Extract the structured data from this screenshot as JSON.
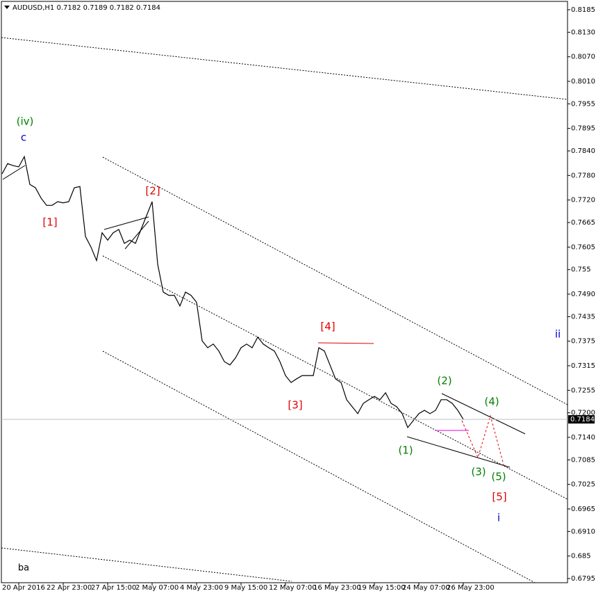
{
  "chart_data": {
    "type": "line",
    "title": "AUDUSD,H1  0.7182 0.7189 0.7182 0.7184",
    "categories": [
      null,
      null,
      null,
      "20 Apr 2016",
      null,
      null,
      null,
      null,
      null,
      null,
      null,
      "22 Apr 23:00",
      null,
      null,
      null,
      null,
      null,
      null,
      null,
      "27 Apr 15:00",
      null,
      null,
      null,
      null,
      null,
      null,
      null,
      "2 May 07:00",
      null,
      null,
      null,
      null,
      null,
      null,
      null,
      "4 May 23:00",
      null,
      null,
      null,
      null,
      null,
      null,
      null,
      "9 May 15:00",
      null,
      null,
      null,
      null,
      null,
      null,
      null,
      "12 May 07:00",
      null,
      null,
      null,
      null,
      null,
      null,
      null,
      "16 May 23:00",
      null,
      null,
      null,
      null,
      null,
      null,
      null,
      "19 May 15:00",
      null,
      null,
      null,
      null,
      null,
      null,
      null,
      "24 May 07:00",
      null,
      null,
      null,
      null,
      null,
      null,
      null,
      "26 May 23:00"
    ],
    "series": [
      {
        "name": "AUDUSD,H1",
        "color": "#000000",
        "values": [
          0.7784,
          0.7809,
          0.7804,
          0.7801,
          0.7826,
          0.7758,
          0.775,
          0.7725,
          0.7707,
          0.7707,
          0.7716,
          0.7713,
          0.7716,
          0.775,
          0.7753,
          0.7631,
          0.7605,
          0.7572,
          0.764,
          0.7622,
          0.764,
          0.7648,
          0.7614,
          0.7622,
          0.7614,
          0.7648,
          0.7682,
          0.7716,
          0.7563,
          0.7495,
          0.7487,
          0.7487,
          0.7461,
          0.7495,
          0.7487,
          0.747,
          0.7376,
          0.7359,
          0.7368,
          0.7351,
          0.7325,
          0.7317,
          0.7334,
          0.7359,
          0.7368,
          0.7359,
          0.7385,
          0.7368,
          0.7359,
          0.7351,
          0.7325,
          0.7291,
          0.7274,
          0.7283,
          0.7291,
          0.7291,
          0.7291,
          0.7359,
          0.7351,
          0.7317,
          0.7283,
          0.7274,
          0.7232,
          0.7215,
          0.7198,
          0.7223,
          0.7232,
          0.724,
          0.7232,
          0.7249,
          0.7223,
          0.7215,
          0.7198,
          0.7164,
          0.7181,
          0.7198,
          0.7206,
          0.7198,
          0.7206,
          0.7232,
          0.7232,
          0.7223,
          0.7206,
          0.7184
        ]
      }
    ],
    "ylim": [
      0.6795,
      0.8185
    ],
    "yticks": [
      0.8185,
      {
        "value": 0.813,
        "label": "0.8130"
      },
      {
        "value": 0.807,
        "label": "0.8070"
      },
      {
        "value": 0.801,
        "label": "0.8010"
      },
      0.7955,
      0.7895,
      {
        "value": 0.784,
        "label": "0.7840"
      },
      {
        "value": 0.778,
        "label": "0.7780"
      },
      {
        "value": 0.772,
        "label": "0.7720"
      },
      0.7665,
      0.7605,
      0.755,
      {
        "value": 0.749,
        "label": "0.7490"
      },
      0.7435,
      0.7375,
      0.7315,
      0.7255,
      {
        "value": 0.72,
        "label": "0.7200"
      },
      {
        "value": 0.714,
        "label": "0.7140"
      },
      0.7085,
      0.7025,
      0.6965,
      {
        "value": 0.691,
        "label": "0.6910"
      },
      0.685,
      0.6795
    ],
    "current_price": 0.7184,
    "annotations": [
      {
        "text": "(iv)",
        "color": "#008000"
      },
      {
        "text": "c",
        "color": "#0000cc"
      },
      {
        "text": "[1]",
        "color": "#e00000"
      },
      {
        "text": "[2]",
        "color": "#e00000"
      },
      {
        "text": "[3]",
        "color": "#e00000"
      },
      {
        "text": "[4]",
        "color": "#e00000"
      },
      {
        "text": "(1)",
        "color": "#008000"
      },
      {
        "text": "(2)",
        "color": "#008000"
      },
      {
        "text": "(3)",
        "color": "#008000"
      },
      {
        "text": "(4)",
        "color": "#008000"
      },
      {
        "text": "(5)",
        "color": "#008000"
      },
      {
        "text": "[5]",
        "color": "#e00000"
      },
      {
        "text": "i",
        "color": "#0000cc"
      },
      {
        "text": "ii",
        "color": "#0000cc"
      },
      {
        "text": "ba",
        "color": "#000000"
      }
    ]
  }
}
